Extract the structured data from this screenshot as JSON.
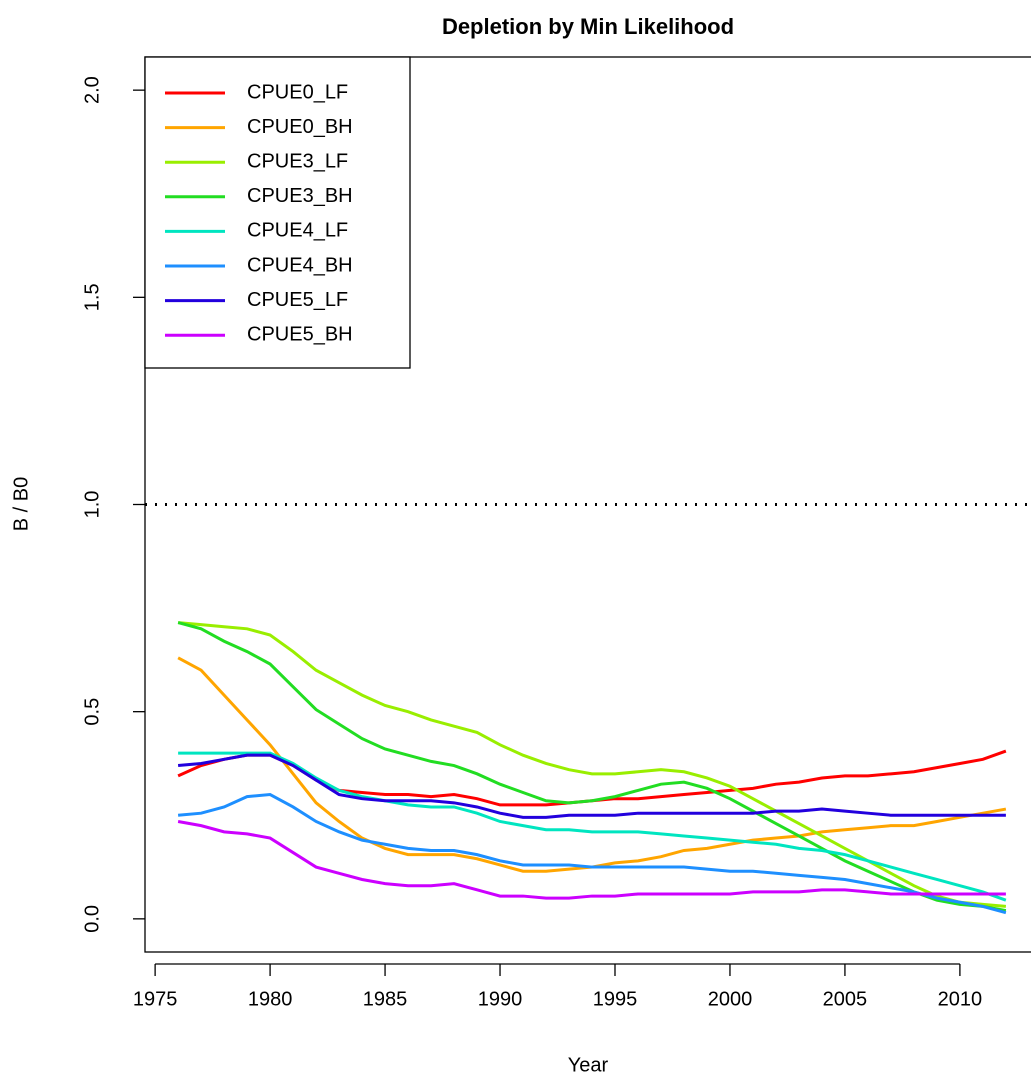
{
  "chart_data": {
    "type": "line",
    "title": "Depletion by Min Likelihood",
    "x_label": "Year",
    "y_label": "B / B0",
    "x": [
      1976,
      1977,
      1978,
      1979,
      1980,
      1981,
      1982,
      1983,
      1984,
      1985,
      1986,
      1987,
      1988,
      1989,
      1990,
      1991,
      1992,
      1993,
      1994,
      1995,
      1996,
      1997,
      1998,
      1999,
      2000,
      2001,
      2002,
      2003,
      2004,
      2005,
      2006,
      2007,
      2008,
      2009,
      2010,
      2011,
      2012
    ],
    "xlim": [
      1974.56,
      2013.44
    ],
    "xticks": [
      1975,
      1980,
      1985,
      1990,
      1995,
      2000,
      2005,
      2010
    ],
    "ylim": [
      -0.08,
      2.08
    ],
    "yticks": [
      {
        "value": 0,
        "label": "0.0"
      },
      0.5,
      {
        "value": 1,
        "label": "1.0"
      },
      1.5,
      {
        "value": 2,
        "label": "2.0"
      }
    ],
    "hline": 1,
    "legend": "top-left",
    "series": [
      {
        "name": "CPUE0_LF",
        "color": "#FF0000",
        "values": [
          0.345,
          0.37,
          0.385,
          0.395,
          0.395,
          0.37,
          0.335,
          0.31,
          0.305,
          0.3,
          0.3,
          0.295,
          0.3,
          0.29,
          0.275,
          0.275,
          0.275,
          0.28,
          0.285,
          0.29,
          0.29,
          0.295,
          0.3,
          0.305,
          0.31,
          0.315,
          0.325,
          0.33,
          0.34,
          0.345,
          0.345,
          0.35,
          0.355,
          0.365,
          0.375,
          0.385,
          0.405
        ]
      },
      {
        "name": "CPUE0_BH",
        "color": "#FFA500",
        "values": [
          0.63,
          0.6,
          0.54,
          0.48,
          0.42,
          0.35,
          0.28,
          0.235,
          0.195,
          0.17,
          0.155,
          0.155,
          0.155,
          0.145,
          0.13,
          0.115,
          0.115,
          0.12,
          0.125,
          0.135,
          0.14,
          0.15,
          0.165,
          0.17,
          0.18,
          0.19,
          0.195,
          0.2,
          0.21,
          0.215,
          0.22,
          0.225,
          0.225,
          0.235,
          0.245,
          0.255,
          0.265
        ]
      },
      {
        "name": "CPUE3_LF",
        "color": "#99EE00",
        "values": [
          0.715,
          0.71,
          0.705,
          0.7,
          0.685,
          0.645,
          0.6,
          0.57,
          0.54,
          0.515,
          0.5,
          0.48,
          0.465,
          0.45,
          0.42,
          0.395,
          0.375,
          0.36,
          0.35,
          0.35,
          0.355,
          0.36,
          0.355,
          0.34,
          0.32,
          0.29,
          0.26,
          0.23,
          0.2,
          0.17,
          0.14,
          0.11,
          0.08,
          0.055,
          0.04,
          0.035,
          0.03
        ]
      },
      {
        "name": "CPUE3_BH",
        "color": "#22DD22",
        "values": [
          0.715,
          0.7,
          0.67,
          0.645,
          0.615,
          0.56,
          0.505,
          0.47,
          0.435,
          0.41,
          0.395,
          0.38,
          0.37,
          0.35,
          0.325,
          0.305,
          0.285,
          0.28,
          0.285,
          0.295,
          0.31,
          0.325,
          0.33,
          0.315,
          0.29,
          0.26,
          0.23,
          0.2,
          0.17,
          0.14,
          0.115,
          0.09,
          0.065,
          0.045,
          0.035,
          0.03,
          0.02
        ]
      },
      {
        "name": "CPUE4_LF",
        "color": "#00E5C0",
        "values": [
          0.4,
          0.4,
          0.4,
          0.4,
          0.4,
          0.375,
          0.34,
          0.31,
          0.295,
          0.285,
          0.275,
          0.27,
          0.27,
          0.255,
          0.235,
          0.225,
          0.215,
          0.215,
          0.21,
          0.21,
          0.21,
          0.205,
          0.2,
          0.195,
          0.19,
          0.185,
          0.18,
          0.17,
          0.165,
          0.155,
          0.14,
          0.125,
          0.11,
          0.095,
          0.08,
          0.065,
          0.045
        ]
      },
      {
        "name": "CPUE4_BH",
        "color": "#1E8FFF",
        "values": [
          0.25,
          0.255,
          0.27,
          0.295,
          0.3,
          0.27,
          0.235,
          0.21,
          0.19,
          0.18,
          0.17,
          0.165,
          0.165,
          0.155,
          0.14,
          0.13,
          0.13,
          0.13,
          0.125,
          0.125,
          0.125,
          0.125,
          0.125,
          0.12,
          0.115,
          0.115,
          0.11,
          0.105,
          0.1,
          0.095,
          0.085,
          0.075,
          0.065,
          0.05,
          0.04,
          0.03,
          0.015
        ]
      },
      {
        "name": "CPUE5_LF",
        "color": "#2200DD",
        "values": [
          0.37,
          0.375,
          0.385,
          0.395,
          0.395,
          0.37,
          0.335,
          0.3,
          0.29,
          0.285,
          0.285,
          0.285,
          0.28,
          0.27,
          0.255,
          0.245,
          0.245,
          0.25,
          0.25,
          0.25,
          0.255,
          0.255,
          0.255,
          0.255,
          0.255,
          0.255,
          0.26,
          0.26,
          0.265,
          0.26,
          0.255,
          0.25,
          0.25,
          0.25,
          0.25,
          0.25,
          0.25
        ]
      },
      {
        "name": "CPUE5_BH",
        "color": "#CC00FF",
        "values": [
          0.235,
          0.225,
          0.21,
          0.205,
          0.195,
          0.16,
          0.125,
          0.11,
          0.095,
          0.085,
          0.08,
          0.08,
          0.085,
          0.07,
          0.055,
          0.055,
          0.05,
          0.05,
          0.055,
          0.055,
          0.06,
          0.06,
          0.06,
          0.06,
          0.06,
          0.065,
          0.065,
          0.065,
          0.07,
          0.07,
          0.065,
          0.06,
          0.06,
          0.06,
          0.06,
          0.06,
          0.06
        ]
      }
    ]
  }
}
